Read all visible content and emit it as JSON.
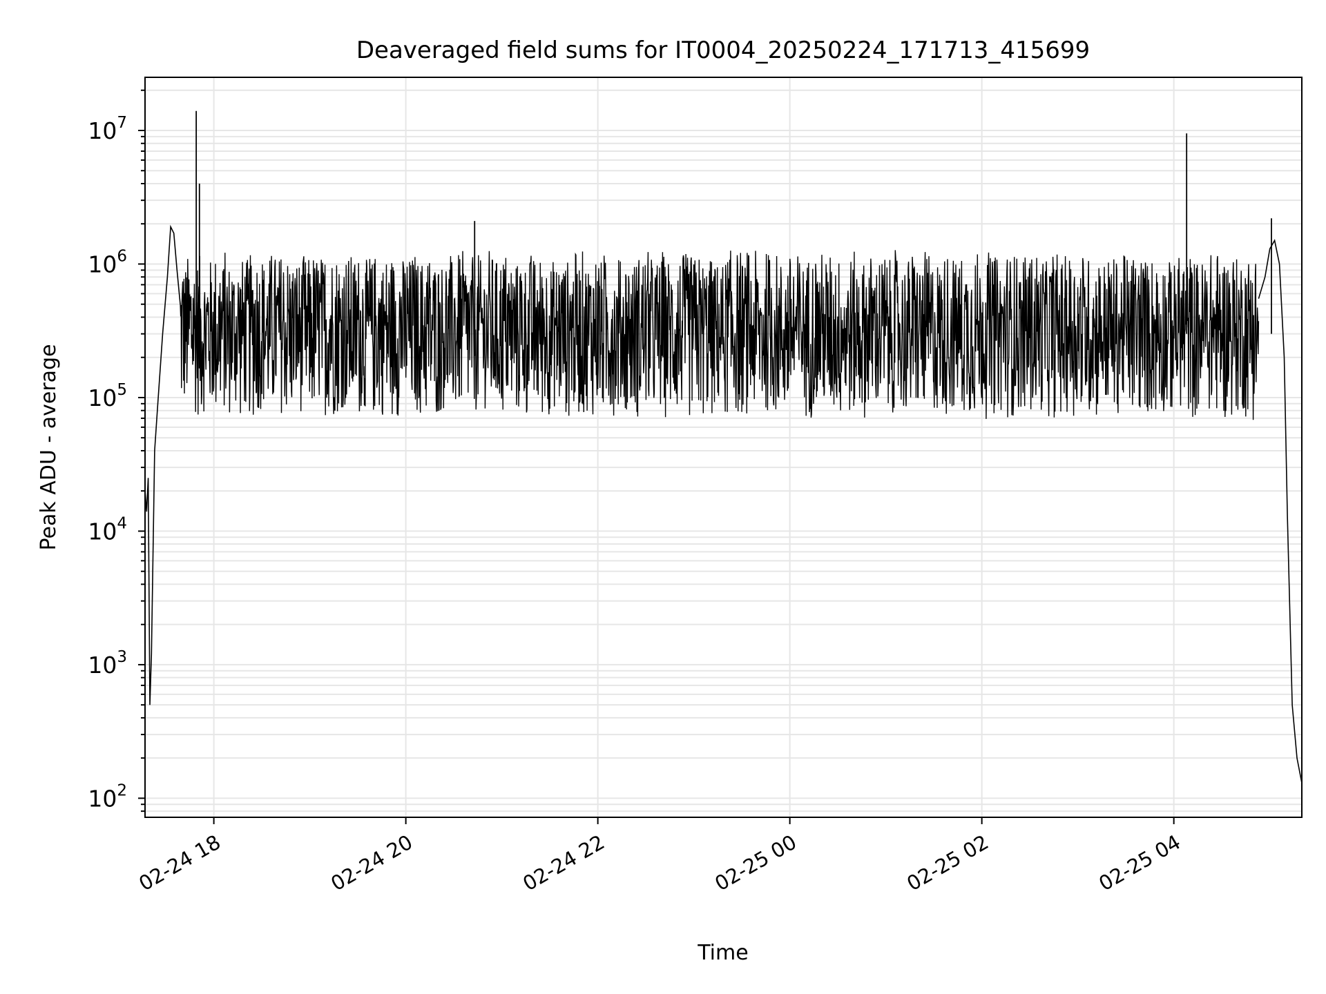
{
  "chart_data": {
    "type": "line",
    "title": "Deaveraged field sums for IT0004_20250224_171713_415699",
    "xlabel": "Time",
    "ylabel": "Peak ADU - average",
    "xscale": "time",
    "yscale": "log",
    "xlim": [
      "2025-02-24 17:17",
      "2025-02-25 05:20"
    ],
    "ylim": [
      72,
      25000000
    ],
    "grid": true,
    "legend": "none",
    "line_color": "#000000",
    "grid_color": "#e6e6e6",
    "x_ticks": [
      {
        "t": "2025-02-24 18:00",
        "label": "02-24 18"
      },
      {
        "t": "2025-02-24 20:00",
        "label": "02-24 20"
      },
      {
        "t": "2025-02-24 22:00",
        "label": "02-24 22"
      },
      {
        "t": "2025-02-25 00:00",
        "label": "02-25 00"
      },
      {
        "t": "2025-02-25 02:00",
        "label": "02-25 02"
      },
      {
        "t": "2025-02-25 04:00",
        "label": "02-25 04"
      }
    ],
    "y_ticks": [
      {
        "value": 100,
        "base": "10",
        "exp": "2"
      },
      {
        "value": 1000,
        "base": "10",
        "exp": "3"
      },
      {
        "value": 10000,
        "base": "10",
        "exp": "4"
      },
      {
        "value": 100000,
        "base": "10",
        "exp": "5"
      },
      {
        "value": 1000000,
        "base": "10",
        "exp": "6"
      },
      {
        "value": 10000000,
        "base": "10",
        "exp": "7"
      }
    ],
    "series": [
      {
        "values_description_note": "",
        "envelope": [
          {
            "t": "2025-02-24 17:17",
            "y": 20000
          },
          {
            "t": "2025-02-24 17:18",
            "y": 14000
          },
          {
            "t": "2025-02-24 17:19",
            "y": 25000
          },
          {
            "t": "2025-02-24 17:20",
            "y": 500
          },
          {
            "t": "2025-02-24 17:21",
            "y": 1200
          },
          {
            "t": "2025-02-24 17:23",
            "y": 40000
          },
          {
            "t": "2025-02-24 17:25",
            "y": 90000
          },
          {
            "t": "2025-02-24 17:28",
            "y": 300000
          },
          {
            "t": "2025-02-24 17:31",
            "y": 800000
          },
          {
            "t": "2025-02-24 17:33",
            "y": 1900000
          },
          {
            "t": "2025-02-24 17:35",
            "y": 1700000
          },
          {
            "t": "2025-02-24 17:37",
            "y": 900000
          },
          {
            "t": "2025-02-24 17:39",
            "y": 500000
          }
        ],
        "spikes": [
          {
            "t": "2025-02-24 17:49",
            "y": 14000000
          },
          {
            "t": "2025-02-24 17:51",
            "y": 4000000
          },
          {
            "t": "2025-02-24 20:43",
            "y": 2100000
          },
          {
            "t": "2025-02-25 04:08",
            "y": 9500000
          },
          {
            "t": "2025-02-25 05:01",
            "y": 2200000
          }
        ],
        "band": {
          "start": "2025-02-24 17:39",
          "end": "2025-02-25 04:53",
          "low": 50000,
          "high": 1300000
        },
        "end_segment": [
          {
            "t": "2025-02-25 04:53",
            "y": 550000
          },
          {
            "t": "2025-02-25 04:57",
            "y": 800000
          },
          {
            "t": "2025-02-25 05:00",
            "y": 1300000
          },
          {
            "t": "2025-02-25 05:03",
            "y": 1500000
          },
          {
            "t": "2025-02-25 05:06",
            "y": 1000000
          },
          {
            "t": "2025-02-25 05:09",
            "y": 200000
          },
          {
            "t": "2025-02-25 05:11",
            "y": 13000
          },
          {
            "t": "2025-02-25 05:14",
            "y": 500
          },
          {
            "t": "2025-02-25 05:17",
            "y": 200
          },
          {
            "t": "2025-02-25 05:20",
            "y": 130
          }
        ]
      }
    ]
  }
}
